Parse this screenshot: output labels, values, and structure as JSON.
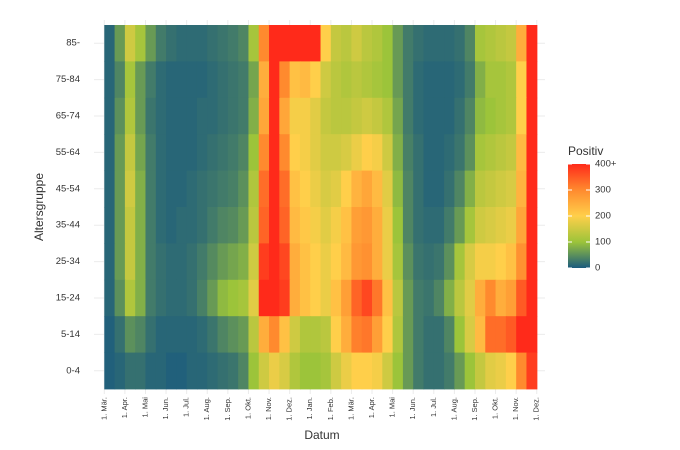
{
  "chart_data": {
    "type": "heatmap",
    "x_label": "Datum",
    "y_label": "Altersgruppe",
    "legend_title": "Positiv",
    "x": [
      0,
      0.5,
      1,
      1.5,
      2,
      2.5,
      3,
      3.5,
      4,
      4.5,
      5,
      5.5,
      6,
      6.5,
      7,
      7.5,
      8,
      8.5,
      9,
      9.5,
      10,
      10.5,
      11,
      11.5,
      12,
      12.5,
      13,
      13.5,
      14,
      14.5,
      15,
      15.5,
      16,
      16.5,
      17,
      17.5,
      18,
      18.5,
      19,
      19.5,
      20,
      20.5
    ],
    "xlim": [
      -0.5,
      21.4
    ],
    "xticks": [
      {
        "value": 0,
        "label": "1. Mär."
      },
      {
        "value": 1,
        "label": "1. Apr."
      },
      {
        "value": 2,
        "label": "1. Mai"
      },
      {
        "value": 3,
        "label": "1. Jun."
      },
      {
        "value": 4,
        "label": "1. Jul."
      },
      {
        "value": 5,
        "label": "1. Aug."
      },
      {
        "value": 6,
        "label": "1. Sep."
      },
      {
        "value": 7,
        "label": "1. Okt."
      },
      {
        "value": 8,
        "label": "1. Nov."
      },
      {
        "value": 9,
        "label": "1. Dez."
      },
      {
        "value": 10,
        "label": "1. Jan."
      },
      {
        "value": 11,
        "label": "1. Feb."
      },
      {
        "value": 12,
        "label": "1. Mär."
      },
      {
        "value": 13,
        "label": "1. Apr."
      },
      {
        "value": 14,
        "label": "1. Mai"
      },
      {
        "value": 15,
        "label": "1. Jun."
      },
      {
        "value": 16,
        "label": "1. Jul."
      },
      {
        "value": 17,
        "label": "1. Aug."
      },
      {
        "value": 18,
        "label": "1. Sep."
      },
      {
        "value": 19,
        "label": "1. Okt."
      },
      {
        "value": 20,
        "label": "1. Nov."
      },
      {
        "value": 21,
        "label": "1. Dez."
      }
    ],
    "zlim": [
      0,
      400
    ],
    "zticks": [
      0,
      100,
      200,
      300,
      {
        "value": 400,
        "label": "400+"
      }
    ],
    "colorscale": [
      [
        0,
        "#1b5b7e"
      ],
      [
        100,
        "#9cc43a"
      ],
      [
        200,
        "#ffcf4a"
      ],
      [
        300,
        "#ff8a2e"
      ],
      [
        400,
        "#ff2a1a"
      ]
    ],
    "series": [
      {
        "name": "85-",
        "values": [
          10,
          60,
          150,
          110,
          60,
          30,
          20,
          15,
          15,
          15,
          20,
          25,
          30,
          40,
          110,
          300,
          420,
          420,
          420,
          420,
          400,
          200,
          140,
          130,
          150,
          130,
          120,
          100,
          60,
          30,
          20,
          15,
          15,
          15,
          20,
          40,
          110,
          120,
          130,
          140,
          250,
          420
        ]
      },
      {
        "name": "75-84",
        "values": [
          10,
          40,
          110,
          60,
          30,
          15,
          10,
          10,
          10,
          10,
          15,
          20,
          25,
          30,
          70,
          250,
          400,
          300,
          220,
          230,
          200,
          150,
          130,
          120,
          130,
          120,
          110,
          100,
          60,
          30,
          15,
          10,
          10,
          10,
          15,
          30,
          80,
          110,
          110,
          120,
          200,
          420
        ]
      },
      {
        "name": "65-74",
        "values": [
          10,
          50,
          120,
          60,
          25,
          15,
          10,
          10,
          10,
          15,
          15,
          20,
          25,
          30,
          80,
          260,
          400,
          260,
          190,
          190,
          170,
          140,
          130,
          130,
          140,
          150,
          140,
          120,
          70,
          30,
          15,
          10,
          10,
          10,
          20,
          40,
          90,
          100,
          110,
          120,
          200,
          420
        ]
      },
      {
        "name": "55-64",
        "values": [
          10,
          60,
          140,
          70,
          30,
          15,
          10,
          10,
          10,
          15,
          20,
          25,
          30,
          40,
          100,
          300,
          420,
          300,
          200,
          190,
          170,
          150,
          150,
          160,
          180,
          200,
          190,
          150,
          80,
          35,
          20,
          10,
          10,
          15,
          25,
          50,
          110,
          120,
          130,
          140,
          230,
          420
        ]
      },
      {
        "name": "45-54",
        "values": [
          10,
          60,
          150,
          80,
          30,
          15,
          10,
          10,
          15,
          20,
          25,
          30,
          35,
          50,
          120,
          330,
          420,
          330,
          220,
          200,
          180,
          160,
          170,
          200,
          240,
          260,
          230,
          170,
          90,
          40,
          20,
          10,
          10,
          20,
          40,
          80,
          130,
          140,
          150,
          160,
          240,
          420
        ]
      },
      {
        "name": "35-44",
        "values": [
          10,
          60,
          140,
          80,
          30,
          15,
          10,
          15,
          15,
          20,
          30,
          40,
          45,
          60,
          130,
          340,
          420,
          340,
          230,
          210,
          190,
          170,
          190,
          220,
          270,
          280,
          250,
          180,
          100,
          40,
          20,
          15,
          15,
          30,
          60,
          110,
          150,
          160,
          170,
          180,
          260,
          420
        ]
      },
      {
        "name": "25-34",
        "values": [
          10,
          60,
          140,
          80,
          30,
          20,
          15,
          15,
          20,
          30,
          45,
          60,
          70,
          80,
          150,
          380,
          420,
          370,
          250,
          220,
          200,
          180,
          200,
          230,
          280,
          290,
          250,
          180,
          110,
          50,
          25,
          20,
          25,
          50,
          110,
          160,
          190,
          190,
          200,
          220,
          290,
          420
        ]
      },
      {
        "name": "15-24",
        "values": [
          10,
          50,
          120,
          80,
          30,
          20,
          15,
          15,
          20,
          35,
          60,
          90,
          100,
          110,
          170,
          400,
          420,
          380,
          250,
          220,
          200,
          180,
          220,
          270,
          340,
          370,
          320,
          220,
          130,
          60,
          30,
          25,
          40,
          80,
          130,
          170,
          250,
          300,
          250,
          270,
          350,
          420
        ]
      },
      {
        "name": "5-14",
        "values": [
          5,
          20,
          50,
          40,
          20,
          10,
          10,
          10,
          10,
          15,
          25,
          40,
          50,
          60,
          130,
          250,
          300,
          220,
          150,
          120,
          120,
          130,
          200,
          250,
          310,
          320,
          270,
          200,
          120,
          60,
          30,
          20,
          20,
          40,
          100,
          160,
          230,
          330,
          330,
          350,
          420,
          420
        ]
      },
      {
        "name": "0-4",
        "values": [
          5,
          10,
          20,
          20,
          10,
          10,
          5,
          5,
          10,
          10,
          15,
          20,
          25,
          40,
          100,
          150,
          180,
          160,
          120,
          100,
          100,
          110,
          150,
          180,
          200,
          200,
          190,
          150,
          100,
          60,
          30,
          20,
          20,
          30,
          60,
          100,
          140,
          170,
          180,
          200,
          300,
          380
        ]
      }
    ]
  }
}
